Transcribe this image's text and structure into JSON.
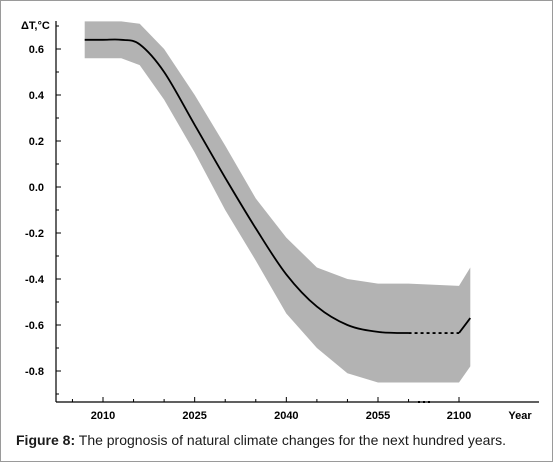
{
  "chart_data": {
    "type": "line",
    "ylabel": "ΔT,°C",
    "xlabel": "Year",
    "ylim": [
      -0.9,
      0.72
    ],
    "yticks": [
      0.6,
      0.4,
      0.2,
      0.0,
      -0.2,
      -0.4,
      -0.6,
      -0.8
    ],
    "ytick_labels": [
      "0.6",
      "0.4",
      "0.2",
      "0.0",
      "-0.2",
      "-0.4",
      "-0.6",
      "-0.8"
    ],
    "xtick_labels": [
      "2010",
      "2025",
      "2040",
      "2055",
      "2100"
    ],
    "x_axis_note": "axis broken between 2055 and 2100 (dotted segment)",
    "series": [
      {
        "role": "mean",
        "color": "#000000",
        "x": [
          "2007",
          "2010",
          "2013",
          "2016",
          "2020",
          "2025",
          "2030",
          "2035",
          "2040",
          "2045",
          "2050",
          "2055",
          "2060",
          "2100",
          "2110"
        ],
        "y": [
          0.64,
          0.64,
          0.64,
          0.62,
          0.5,
          0.27,
          0.04,
          -0.18,
          -0.38,
          -0.52,
          -0.6,
          -0.63,
          -0.635,
          -0.635,
          -0.57
        ]
      }
    ],
    "band": {
      "color": "#b3b3b3",
      "x": [
        "2007",
        "2010",
        "2013",
        "2016",
        "2020",
        "2025",
        "2030",
        "2035",
        "2040",
        "2045",
        "2050",
        "2055",
        "2060",
        "2100",
        "2110"
      ],
      "upper": [
        0.72,
        0.72,
        0.72,
        0.71,
        0.6,
        0.4,
        0.18,
        -0.05,
        -0.22,
        -0.35,
        -0.4,
        -0.42,
        -0.42,
        -0.43,
        -0.35
      ],
      "lower": [
        0.56,
        0.56,
        0.56,
        0.53,
        0.38,
        0.15,
        -0.1,
        -0.32,
        -0.55,
        -0.7,
        -0.81,
        -0.85,
        -0.85,
        -0.85,
        -0.78
      ]
    },
    "grid": false
  },
  "caption": {
    "label": "Figure 8:",
    "text": " The prognosis of natural climate changes for the next hundred years."
  }
}
